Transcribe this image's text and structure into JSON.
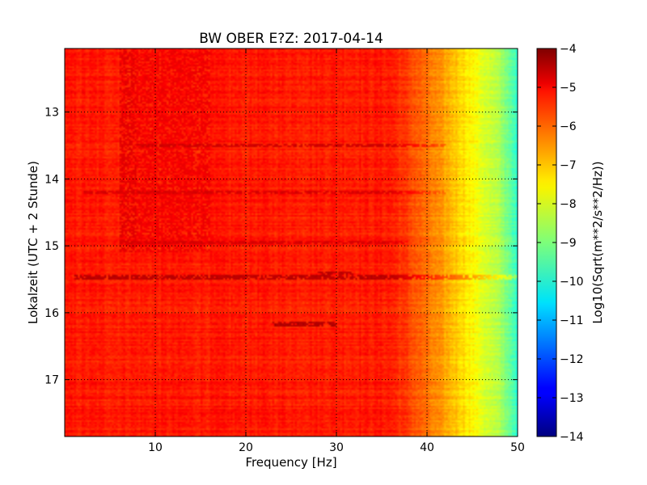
{
  "chart_data": {
    "type": "heatmap",
    "title": "BW OBER E?Z: 2017-04-14",
    "xlabel": "Frequency [Hz]",
    "ylabel": "Lokalzeit (UTC + 2 Stunde)",
    "xlim": [
      0,
      50
    ],
    "ylim": [
      17.85,
      12.05
    ],
    "x_ticks": [
      10,
      20,
      30,
      40,
      50
    ],
    "y_ticks": [
      13,
      14,
      15,
      16,
      17
    ],
    "grid": true,
    "colormap": "jet",
    "colorbar": {
      "label": "Log10(Sqrt(m**2/s**2/Hz))",
      "range": [
        -14,
        -4
      ],
      "ticks": [
        -4,
        -5,
        -6,
        -7,
        -8,
        -9,
        -10,
        -11,
        -12,
        -13,
        -14
      ]
    },
    "background_level": -5.5,
    "frequency_rolloff": [
      {
        "freq_hz": 0,
        "value": -5.5
      },
      {
        "freq_hz": 36,
        "value": -5.5
      },
      {
        "freq_hz": 38,
        "value": -5.9
      },
      {
        "freq_hz": 40,
        "value": -6.4
      },
      {
        "freq_hz": 42,
        "value": -6.9
      },
      {
        "freq_hz": 44,
        "value": -7.4
      },
      {
        "freq_hz": 46,
        "value": -8.0
      },
      {
        "freq_hz": 48,
        "value": -8.6
      },
      {
        "freq_hz": 49.5,
        "value": -9.4
      },
      {
        "freq_hz": 50,
        "value": -10.0
      }
    ],
    "features": [
      {
        "kind": "vertical_band",
        "freq_hz": [
          6,
          16
        ],
        "time_h": [
          12.05,
          15.1
        ],
        "value": -5.0
      },
      {
        "kind": "horizontal_line",
        "time_h": 15.47,
        "freq_hz": [
          1,
          50
        ],
        "value": -4.6
      },
      {
        "kind": "horizontal_line",
        "time_h": 14.2,
        "freq_hz": [
          2,
          42
        ],
        "value": -4.9
      },
      {
        "kind": "horizontal_line",
        "time_h": 13.5,
        "freq_hz": [
          8,
          42
        ],
        "value": -4.8
      },
      {
        "kind": "horizontal_line",
        "time_h": 14.95,
        "freq_hz": [
          6,
          38
        ],
        "value": -4.9
      },
      {
        "kind": "horizontal_line",
        "time_h": 16.17,
        "freq_hz": [
          23,
          30
        ],
        "value": -4.5
      },
      {
        "kind": "horizontal_line",
        "time_h": 15.4,
        "freq_hz": [
          28,
          32
        ],
        "value": -4.6
      }
    ]
  }
}
